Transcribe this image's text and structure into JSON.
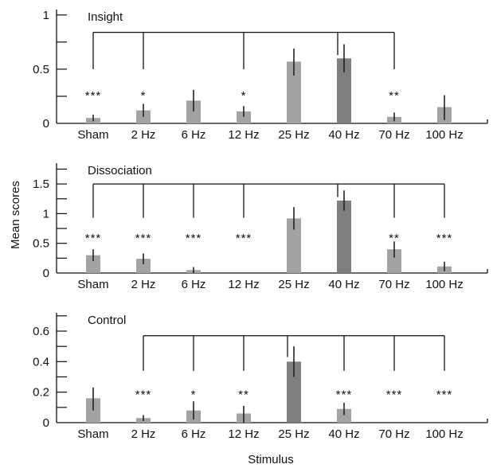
{
  "chart_data": [
    {
      "type": "bar",
      "title": "Insight",
      "ylim": [
        0,
        1.05
      ],
      "yticks": [
        0,
        0.5,
        1
      ],
      "ytick_labels": [
        "0",
        "0.5",
        "1"
      ],
      "minor_step": 0.25,
      "categories": [
        "Sham",
        "2 Hz",
        "6 Hz",
        "12 Hz",
        "25 Hz",
        "40 Hz",
        "70 Hz",
        "100 Hz"
      ],
      "values": [
        0.05,
        0.12,
        0.21,
        0.11,
        0.57,
        0.6,
        0.06,
        0.15
      ],
      "err_low": [
        0.02,
        0.06,
        0.11,
        0.06,
        0.44,
        0.47,
        0.02,
        0.03
      ],
      "err_high": [
        0.08,
        0.18,
        0.31,
        0.16,
        0.69,
        0.73,
        0.1,
        0.26
      ],
      "reference": "40 Hz",
      "significance": [
        "***",
        "*",
        "",
        "*",
        "",
        "",
        "**",
        ""
      ],
      "bracket": {
        "level": 0.84,
        "drop_to": 0.5,
        "ref_drop_to": 0.63,
        "members": [
          "Sham",
          "2 Hz",
          "12 Hz",
          "40 Hz",
          "70 Hz"
        ]
      },
      "star_level": 0.28
    },
    {
      "type": "bar",
      "title": "Dissociation",
      "ylim": [
        0,
        1.85
      ],
      "yticks": [
        0,
        0.5,
        1,
        1.5
      ],
      "ytick_labels": [
        "0",
        "0.5",
        "1",
        "1.5"
      ],
      "minor_step": 0.25,
      "categories": [
        "Sham",
        "2 Hz",
        "6 Hz",
        "12 Hz",
        "25 Hz",
        "40 Hz",
        "70 Hz",
        "100 Hz"
      ],
      "values": [
        0.3,
        0.24,
        0.05,
        0,
        0.92,
        1.22,
        0.4,
        0.11
      ],
      "err_low": [
        0.2,
        0.15,
        0,
        0,
        0.73,
        1.05,
        0.26,
        0.03
      ],
      "err_high": [
        0.4,
        0.33,
        0.1,
        0,
        1.11,
        1.39,
        0.53,
        0.19
      ],
      "reference": "40 Hz",
      "significance": [
        "***",
        "***",
        "***",
        "***",
        "",
        "",
        "**",
        "***"
      ],
      "bracket": {
        "level": 1.5,
        "drop_to": 0.93,
        "ref_drop_to": 1.28,
        "members": [
          "Sham",
          "2 Hz",
          "6 Hz",
          "12 Hz",
          "40 Hz",
          "70 Hz",
          "100 Hz"
        ]
      },
      "star_level": 0.63
    },
    {
      "type": "bar",
      "title": "Control",
      "ylim": [
        0,
        0.72
      ],
      "yticks": [
        0,
        0.2,
        0.4,
        0.6
      ],
      "ytick_labels": [
        "0",
        "0.2",
        "0.4",
        "0.6"
      ],
      "minor_step": 0.1,
      "categories": [
        "Sham",
        "2 Hz",
        "6 Hz",
        "12 Hz",
        "25 Hz",
        "40 Hz",
        "70 Hz",
        "100 Hz"
      ],
      "values": [
        0.16,
        0.03,
        0.08,
        0.06,
        0.4,
        0.09,
        0,
        0
      ],
      "err_low": [
        0.08,
        0.01,
        0.02,
        0,
        0.3,
        0.05,
        0,
        0
      ],
      "err_high": [
        0.23,
        0.05,
        0.14,
        0.11,
        0.5,
        0.13,
        0,
        0
      ],
      "reference": "25 Hz",
      "significance": [
        "",
        "***",
        "*",
        "**",
        "",
        "***",
        "***",
        "***"
      ],
      "bracket": {
        "level": 0.57,
        "drop_to": 0.34,
        "ref_drop_to": 0.43,
        "members": [
          "2 Hz",
          "6 Hz",
          "12 Hz",
          "25 Hz",
          "40 Hz",
          "70 Hz",
          "100 Hz"
        ]
      },
      "star_level": 0.2
    }
  ],
  "ylabel": "Mean scores",
  "xlabel": "Stimulus",
  "colors": {
    "bar": "#a3a3a5",
    "reference_bar": "#7f7f82",
    "line": "#111111"
  }
}
